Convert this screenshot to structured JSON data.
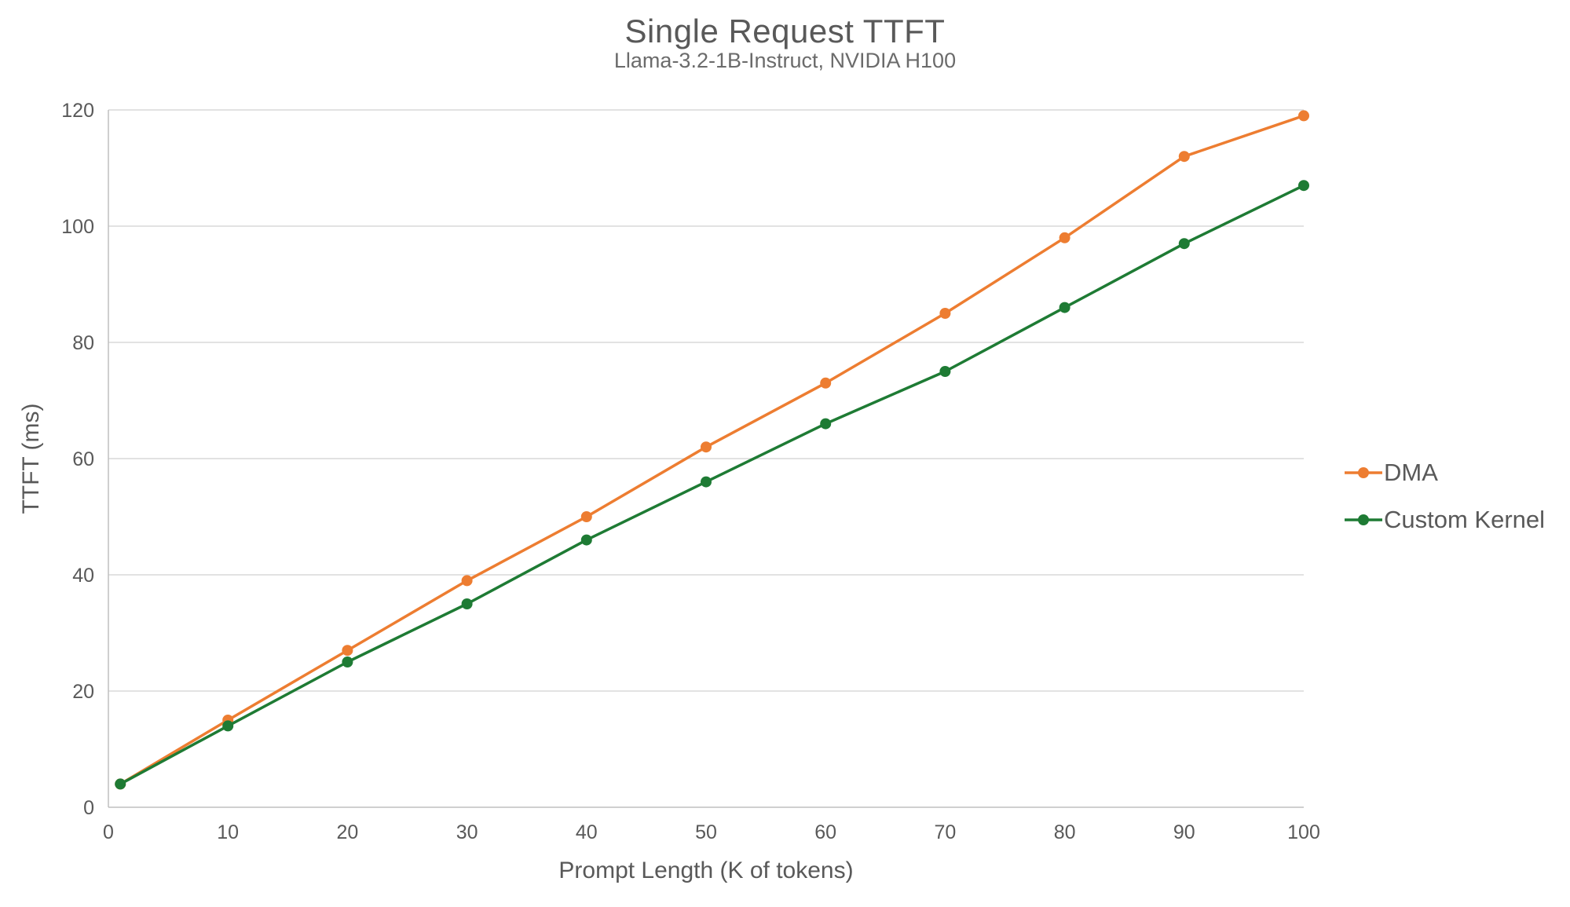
{
  "chart_data": {
    "type": "line",
    "title": "Single Request TTFT",
    "subtitle": "Llama-3.2-1B-Instruct, NVIDIA H100",
    "xlabel": "Prompt Length (K of tokens)",
    "ylabel": "TTFT (ms)",
    "x": [
      1,
      10,
      20,
      30,
      40,
      50,
      60,
      70,
      80,
      90,
      100
    ],
    "series": [
      {
        "name": "DMA",
        "color": "#ED7D31",
        "values": [
          4,
          15,
          27,
          39,
          50,
          62,
          73,
          85,
          98,
          112,
          119
        ]
      },
      {
        "name": "Custom Kernel",
        "color": "#1E7B34",
        "values": [
          4,
          14,
          25,
          35,
          46,
          56,
          66,
          75,
          86,
          97,
          107
        ]
      }
    ],
    "xlim": [
      0,
      100
    ],
    "ylim": [
      0,
      120
    ],
    "x_ticks": [
      0,
      10,
      20,
      30,
      40,
      50,
      60,
      70,
      80,
      90,
      100
    ],
    "y_ticks": [
      0,
      20,
      40,
      60,
      80,
      100,
      120
    ],
    "grid": "horizontal-only",
    "legend_position": "right",
    "colors": {
      "grid": "#D9D9D9",
      "axis": "#BFBFBF",
      "text": "#595959",
      "background": "#FFFFFF"
    }
  }
}
